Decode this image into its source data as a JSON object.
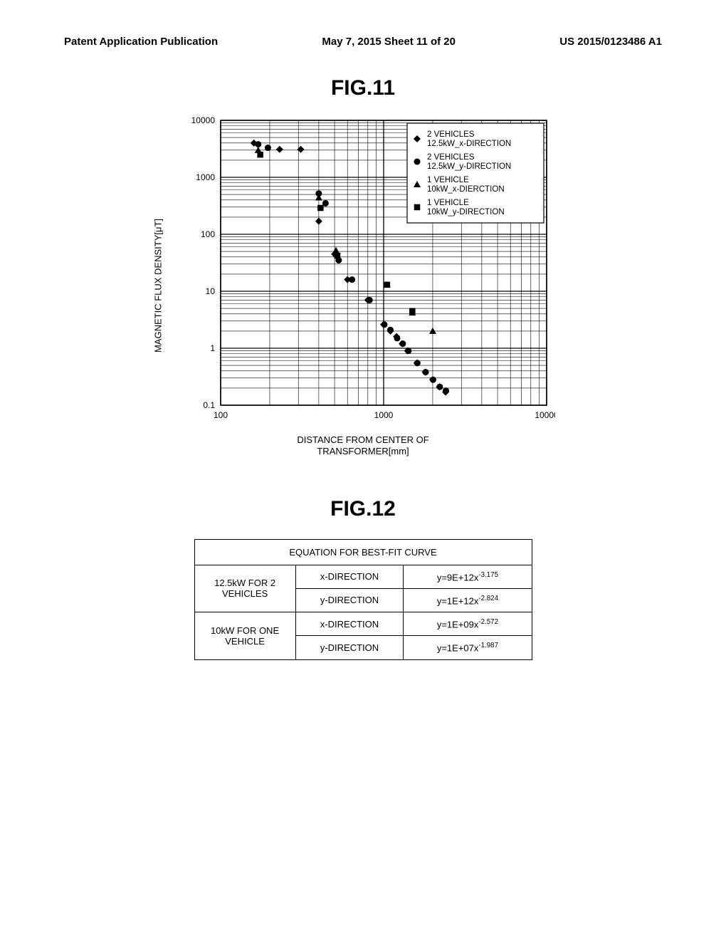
{
  "header": {
    "left": "Patent Application Publication",
    "center": "May 7, 2015    Sheet 11 of 20",
    "right": "US 2015/0123486 A1"
  },
  "fig11": {
    "title": "FIG.11",
    "chart": {
      "type": "scatter",
      "background_color": "#ffffff",
      "grid_color": "#000000",
      "grid_stroke_width": 1,
      "x_axis": {
        "scale": "log",
        "min": 100,
        "max": 10000,
        "ticks": [
          100,
          1000,
          10000
        ]
      },
      "y_axis": {
        "scale": "log",
        "min": 0.1,
        "max": 10000,
        "ticks": [
          0.1,
          1,
          10,
          100,
          1000,
          10000
        ]
      },
      "x_label": "DISTANCE FROM CENTER OF\nTRANSFORMER[mm]",
      "y_label": "MAGNETIC FLUX DENSITY[μT]",
      "legend": {
        "position": "top-right",
        "border_color": "#000000",
        "bg_color": "#ffffff",
        "items": [
          {
            "marker": "diamond",
            "label_l1": "2 VEHICLES",
            "label_l2": "12.5kW_x-DIRECTION"
          },
          {
            "marker": "circle",
            "label_l1": "2 VEHICLES",
            "label_l2": "12.5kW_y-DIRECTION"
          },
          {
            "marker": "triangle",
            "label_l1": "1 VEHICLE",
            "label_l2": "10kW_x-DIERCTION"
          },
          {
            "marker": "square",
            "label_l1": "1 VEHICLE",
            "label_l2": "10kW_y-DIRECTION"
          }
        ]
      },
      "series": [
        {
          "name": "2 VEHICLES 12.5kW_x-DIRECTION",
          "marker": "diamond",
          "color": "#000000",
          "points": [
            [
              160,
              4000
            ],
            [
              230,
              3100
            ],
            [
              310,
              3100
            ],
            [
              400,
              170
            ],
            [
              500,
              45
            ],
            [
              600,
              16
            ],
            [
              800,
              7
            ],
            [
              1000,
              2.6
            ],
            [
              1100,
              2.0
            ],
            [
              1200,
              1.6
            ],
            [
              1300,
              1.2
            ],
            [
              1400,
              0.9
            ],
            [
              1600,
              0.55
            ],
            [
              1800,
              0.38
            ],
            [
              2000,
              0.28
            ],
            [
              2200,
              0.21
            ],
            [
              2400,
              0.17
            ]
          ]
        },
        {
          "name": "2 VEHICLES 12.5kW_y-DIRECTION",
          "marker": "circle",
          "color": "#000000",
          "points": [
            [
              170,
              3800
            ],
            [
              195,
              3300
            ],
            [
              400,
              520
            ],
            [
              440,
              350
            ],
            [
              530,
              35
            ],
            [
              640,
              16
            ],
            [
              820,
              7
            ],
            [
              1010,
              2.6
            ],
            [
              1100,
              2.1
            ],
            [
              1210,
              1.5
            ],
            [
              1310,
              1.2
            ],
            [
              1420,
              0.9
            ],
            [
              1610,
              0.55
            ],
            [
              1810,
              0.38
            ],
            [
              2010,
              0.28
            ],
            [
              2210,
              0.21
            ],
            [
              2410,
              0.18
            ]
          ]
        },
        {
          "name": "1 VEHICLE 10kW_x-DIRECTION",
          "marker": "triangle",
          "color": "#000000",
          "points": [
            [
              170,
              3000
            ],
            [
              400,
              440
            ],
            [
              510,
              52
            ],
            [
              1050,
              13
            ],
            [
              1500,
              4.2
            ],
            [
              2000,
              2.0
            ]
          ]
        },
        {
          "name": "1 VEHICLE 10kW_y-DIRECTION",
          "marker": "square",
          "color": "#000000",
          "points": [
            [
              175,
              2500
            ],
            [
              410,
              290
            ],
            [
              520,
              42
            ],
            [
              1050,
              13
            ],
            [
              1500,
              4.5
            ]
          ]
        }
      ]
    }
  },
  "fig12": {
    "title": "FIG.12",
    "table": {
      "header": "EQUATION FOR BEST-FIT CURVE",
      "rows": [
        {
          "group": "12.5kW FOR 2 VEHICLES",
          "dir": "x-DIRECTION",
          "eq_base": "y=9E+12x",
          "eq_exp": "-3.175"
        },
        {
          "group": "12.5kW FOR 2 VEHICLES",
          "dir": "y-DIRECTION",
          "eq_base": "y=1E+12x",
          "eq_exp": "-2.824"
        },
        {
          "group": "10kW FOR ONE VEHICLE",
          "dir": "x-DIRECTION",
          "eq_base": "y=1E+09x",
          "eq_exp": "-2.572"
        },
        {
          "group": "10kW FOR ONE VEHICLE",
          "dir": "y-DIRECTION",
          "eq_base": "y=1E+07x",
          "eq_exp": "-1.987"
        }
      ]
    }
  }
}
